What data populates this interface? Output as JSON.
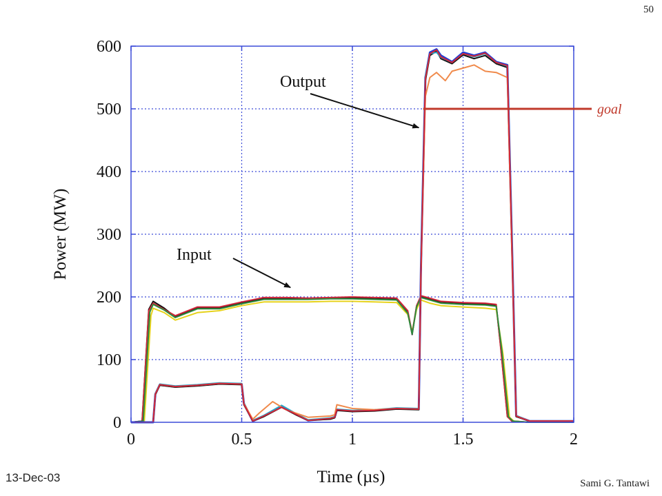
{
  "slide": {
    "page_number": "50",
    "date": "13-Dec-03",
    "author": "Sami G. Tantawi"
  },
  "colors": {
    "axis_frame": "#3b4bd8",
    "grid": "#3b4bd8",
    "goal_line": "#c0392b",
    "annotation_arrow": "#111111",
    "trace_black": "#111111",
    "trace_blue": "#1f3fd6",
    "trace_orange": "#f08a4b",
    "trace_yellow": "#e6d21a",
    "trace_red": "#d1263a",
    "trace_green": "#2e8b3e",
    "trace_cyan": "#2aa8c8"
  },
  "chart_data": {
    "type": "line",
    "title": "",
    "xlabel": "Time (µs)",
    "ylabel": "Power (MW)",
    "xlim": [
      0,
      2
    ],
    "ylim": [
      0,
      600
    ],
    "xticks": [
      0,
      0.5,
      1,
      1.5,
      2
    ],
    "xtick_labels": [
      "0",
      "0.5",
      "1",
      "1.5",
      "2"
    ],
    "yticks": [
      0,
      100,
      200,
      300,
      400,
      500,
      600
    ],
    "ytick_labels": [
      "0",
      "100",
      "200",
      "300",
      "400",
      "500",
      "600"
    ],
    "grid": true,
    "legend": "none",
    "annotations": [
      {
        "text": "Output",
        "points_to": {
          "x": 1.3,
          "y": 470
        }
      },
      {
        "text": "Input",
        "points_to": {
          "x": 0.72,
          "y": 215
        }
      }
    ],
    "goal": {
      "label": "goal",
      "y": 500,
      "x_start": 1.32
    },
    "series": [
      {
        "group": "input",
        "color": "#111111",
        "x": [
          0,
          0.05,
          0.08,
          0.1,
          0.15,
          0.2,
          0.3,
          0.4,
          0.5,
          0.6,
          0.7,
          0.8,
          0.9,
          1.0,
          1.1,
          1.2,
          1.25,
          1.27,
          1.29,
          1.31,
          1.35,
          1.4,
          1.5,
          1.6,
          1.65,
          1.67,
          1.7,
          1.72,
          1.8,
          2.0
        ],
        "y": [
          0,
          2,
          180,
          193,
          182,
          168,
          182,
          182,
          190,
          197,
          197,
          197,
          198,
          199,
          197,
          196,
          175,
          140,
          185,
          200,
          196,
          192,
          190,
          188,
          186,
          120,
          10,
          2,
          0,
          0
        ]
      },
      {
        "group": "input",
        "color": "#e6d21a",
        "x": [
          0,
          0.06,
          0.09,
          0.1,
          0.15,
          0.2,
          0.3,
          0.4,
          0.5,
          0.6,
          0.7,
          0.8,
          0.9,
          1.0,
          1.1,
          1.2,
          1.25,
          1.27,
          1.29,
          1.31,
          1.35,
          1.4,
          1.5,
          1.6,
          1.65,
          1.68,
          1.71,
          1.73,
          1.8,
          2.0
        ],
        "y": [
          0,
          2,
          170,
          182,
          175,
          163,
          175,
          178,
          186,
          192,
          192,
          192,
          193,
          193,
          192,
          191,
          172,
          145,
          180,
          195,
          190,
          186,
          184,
          182,
          180,
          110,
          8,
          2,
          0,
          0
        ]
      },
      {
        "group": "input",
        "color": "#d1263a",
        "x": [
          0,
          0.05,
          0.08,
          0.1,
          0.15,
          0.2,
          0.3,
          0.4,
          0.5,
          0.6,
          0.7,
          0.8,
          0.9,
          1.0,
          1.1,
          1.2,
          1.25,
          1.27,
          1.29,
          1.31,
          1.35,
          1.4,
          1.5,
          1.6,
          1.65,
          1.67,
          1.7,
          1.72,
          1.8,
          2.0
        ],
        "y": [
          0,
          2,
          178,
          190,
          180,
          170,
          184,
          184,
          192,
          199,
          199,
          198,
          199,
          200,
          199,
          198,
          178,
          142,
          186,
          202,
          198,
          193,
          191,
          190,
          188,
          118,
          9,
          2,
          0,
          0
        ]
      },
      {
        "group": "input",
        "color": "#2e8b3e",
        "x": [
          0,
          0.055,
          0.085,
          0.1,
          0.15,
          0.2,
          0.3,
          0.4,
          0.5,
          0.6,
          0.7,
          0.8,
          0.9,
          1.0,
          1.1,
          1.2,
          1.25,
          1.27,
          1.29,
          1.31,
          1.35,
          1.4,
          1.5,
          1.6,
          1.65,
          1.675,
          1.705,
          1.725,
          1.8,
          2.0
        ],
        "y": [
          0,
          2,
          176,
          188,
          179,
          167,
          181,
          181,
          189,
          196,
          196,
          196,
          197,
          197,
          196,
          195,
          174,
          141,
          184,
          199,
          195,
          190,
          188,
          187,
          185,
          115,
          9,
          2,
          0,
          0
        ]
      },
      {
        "group": "output",
        "color": "#1f3fd6",
        "x": [
          0,
          0.1,
          0.11,
          0.13,
          0.2,
          0.3,
          0.4,
          0.5,
          0.51,
          0.55,
          0.6,
          0.68,
          0.75,
          0.8,
          0.9,
          0.92,
          0.93,
          1.0,
          1.1,
          1.2,
          1.3,
          1.31,
          1.33,
          1.35,
          1.38,
          1.4,
          1.45,
          1.5,
          1.55,
          1.6,
          1.65,
          1.7,
          1.72,
          1.74,
          1.8,
          2.0
        ],
        "y": [
          0,
          0,
          45,
          60,
          57,
          59,
          62,
          61,
          30,
          2,
          10,
          25,
          12,
          3,
          6,
          8,
          20,
          18,
          19,
          22,
          21,
          250,
          550,
          590,
          595,
          585,
          575,
          590,
          585,
          590,
          575,
          570,
          300,
          10,
          2,
          2
        ]
      },
      {
        "group": "output",
        "color": "#111111",
        "x": [
          0,
          0.1,
          0.11,
          0.13,
          0.2,
          0.3,
          0.4,
          0.5,
          0.51,
          0.55,
          0.6,
          0.68,
          0.75,
          0.8,
          0.9,
          0.92,
          0.93,
          1.0,
          1.1,
          1.2,
          1.3,
          1.31,
          1.33,
          1.35,
          1.38,
          1.4,
          1.45,
          1.5,
          1.55,
          1.6,
          1.65,
          1.7,
          1.72,
          1.74,
          1.8,
          2.0
        ],
        "y": [
          0,
          0,
          44,
          59,
          56,
          58,
          61,
          60,
          28,
          2,
          9,
          24,
          11,
          3,
          5,
          7,
          19,
          17,
          18,
          21,
          20,
          240,
          545,
          585,
          592,
          580,
          572,
          586,
          580,
          585,
          572,
          566,
          290,
          9,
          2,
          2
        ]
      },
      {
        "group": "output",
        "color": "#2aa8c8",
        "x": [
          0,
          0.1,
          0.11,
          0.13,
          0.2,
          0.3,
          0.4,
          0.5,
          0.51,
          0.55,
          0.6,
          0.68,
          0.75,
          0.8,
          0.9,
          0.92,
          0.93,
          1.0,
          1.1,
          1.2,
          1.3,
          1.31,
          1.33,
          1.35,
          1.38,
          1.4,
          1.45,
          1.5,
          1.55,
          1.6,
          1.65,
          1.7,
          1.72,
          1.74,
          1.8,
          2.0
        ],
        "y": [
          0,
          0,
          46,
          61,
          58,
          60,
          63,
          62,
          31,
          3,
          11,
          27,
          13,
          4,
          7,
          9,
          21,
          19,
          20,
          23,
          22,
          255,
          552,
          588,
          590,
          582,
          574,
          588,
          583,
          588,
          574,
          568,
          305,
          11,
          2,
          2
        ]
      },
      {
        "group": "output",
        "color": "#f08a4b",
        "x": [
          0,
          0.1,
          0.11,
          0.13,
          0.2,
          0.3,
          0.4,
          0.5,
          0.51,
          0.55,
          0.58,
          0.64,
          0.7,
          0.8,
          0.9,
          0.92,
          0.93,
          1.0,
          1.1,
          1.2,
          1.3,
          1.31,
          1.33,
          1.35,
          1.38,
          1.42,
          1.45,
          1.5,
          1.55,
          1.6,
          1.65,
          1.7,
          1.72,
          1.74,
          1.8,
          2.0
        ],
        "y": [
          0,
          0,
          45,
          60,
          57,
          59,
          62,
          61,
          30,
          5,
          15,
          33,
          20,
          8,
          10,
          12,
          28,
          22,
          20,
          22,
          21,
          240,
          520,
          550,
          558,
          545,
          560,
          565,
          570,
          560,
          558,
          550,
          280,
          10,
          2,
          2
        ]
      },
      {
        "group": "output",
        "color": "#d1263a",
        "x": [
          0,
          0.1,
          0.11,
          0.13,
          0.2,
          0.3,
          0.4,
          0.5,
          0.51,
          0.55,
          0.6,
          0.68,
          0.75,
          0.8,
          0.9,
          0.92,
          0.93,
          1.0,
          1.1,
          1.2,
          1.3,
          1.31,
          1.33,
          1.35,
          1.38,
          1.4,
          1.45,
          1.5,
          1.55,
          1.6,
          1.65,
          1.7,
          1.72,
          1.74,
          1.8,
          2.0
        ],
        "y": [
          0,
          0,
          45,
          60,
          57,
          59,
          62,
          61,
          29,
          2,
          10,
          24,
          12,
          3,
          6,
          8,
          20,
          18,
          19,
          22,
          21,
          245,
          548,
          588,
          594,
          583,
          574,
          588,
          584,
          589,
          574,
          569,
          295,
          10,
          2,
          2
        ]
      }
    ]
  }
}
